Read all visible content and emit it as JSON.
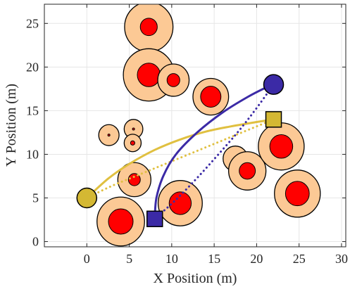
{
  "chart_data": {
    "type": "scatter",
    "title": "",
    "xlabel": "X Position (m)",
    "ylabel": "Y Position (m)",
    "xlim": [
      -5,
      30.5
    ],
    "ylim": [
      -0.6,
      27.2
    ],
    "xticks": [
      0,
      5,
      10,
      15,
      20,
      25,
      30
    ],
    "yticks": [
      0,
      5,
      10,
      15,
      20,
      25
    ],
    "grid": true,
    "obstacles": [
      {
        "x": 7.3,
        "y": 24.6,
        "outer_r": 2.85,
        "inner_r": 1.0
      },
      {
        "x": 7.3,
        "y": 19.1,
        "outer_r": 3.0,
        "inner_r": 1.35
      },
      {
        "x": 10.2,
        "y": 18.5,
        "outer_r": 1.85,
        "inner_r": 0.75
      },
      {
        "x": 14.6,
        "y": 16.6,
        "outer_r": 2.1,
        "inner_r": 1.2
      },
      {
        "x": 2.6,
        "y": 12.2,
        "outer_r": 1.2,
        "inner_r": 0.1
      },
      {
        "x": 5.5,
        "y": 12.9,
        "outer_r": 1.1,
        "inner_r": 0.1
      },
      {
        "x": 5.4,
        "y": 11.3,
        "outer_r": 1.0,
        "inner_r": 0.25
      },
      {
        "x": 5.6,
        "y": 7.1,
        "outer_r": 1.95,
        "inner_r": 0.7
      },
      {
        "x": 17.5,
        "y": 9.5,
        "outer_r": 1.45,
        "inner_r": 0.15
      },
      {
        "x": 18.9,
        "y": 8.1,
        "outer_r": 2.2,
        "inner_r": 0.95
      },
      {
        "x": 22.9,
        "y": 10.9,
        "outer_r": 2.7,
        "inner_r": 1.35
      },
      {
        "x": 24.8,
        "y": 5.5,
        "outer_r": 2.7,
        "inner_r": 1.4
      },
      {
        "x": 11.0,
        "y": 4.4,
        "outer_r": 2.6,
        "inner_r": 1.3
      },
      {
        "x": 4.0,
        "y": 2.3,
        "outer_r": 2.8,
        "inner_r": 1.45
      }
    ],
    "series": [
      {
        "style": "solid",
        "color": "#e0c040",
        "x": [
          0,
          2.5,
          5,
          8,
          11,
          14,
          17,
          20,
          22
        ],
        "y": [
          5,
          7.2,
          8.9,
          10.5,
          11.7,
          12.6,
          13.2,
          13.7,
          14
        ]
      },
      {
        "style": "dotted",
        "color": "#e0c040",
        "x": [
          0,
          3,
          6,
          9,
          12,
          15,
          18,
          22
        ],
        "y": [
          5,
          6.4,
          7.6,
          8.8,
          10.0,
          11.2,
          12.4,
          14
        ]
      },
      {
        "style": "solid",
        "color": "#3b2aa6",
        "x": [
          8,
          8.2,
          9,
          10.5,
          13,
          16,
          19,
          21,
          22
        ],
        "y": [
          2.6,
          5.0,
          7.5,
          10.0,
          12.5,
          14.8,
          16.6,
          17.6,
          18
        ]
      },
      {
        "style": "dotted",
        "color": "#3b2aa6",
        "x": [
          8,
          10.5,
          13,
          15.5,
          18,
          20,
          22
        ],
        "y": [
          2.6,
          4.8,
          7.3,
          10.0,
          12.8,
          15.3,
          18
        ]
      }
    ],
    "markers": [
      {
        "shape": "circle",
        "x": 0,
        "y": 5,
        "color": "#d4b833"
      },
      {
        "shape": "square",
        "x": 22,
        "y": 14,
        "color": "#d4b833"
      },
      {
        "shape": "circle",
        "x": 22,
        "y": 18,
        "color": "#3b2aa6"
      },
      {
        "shape": "square",
        "x": 8,
        "y": 2.6,
        "color": "#3b2aa6"
      }
    ],
    "colors": {
      "buffer": "#fcc995",
      "core": "#ff0000",
      "grid": "#e6e6e6",
      "axis": "#262626"
    }
  }
}
